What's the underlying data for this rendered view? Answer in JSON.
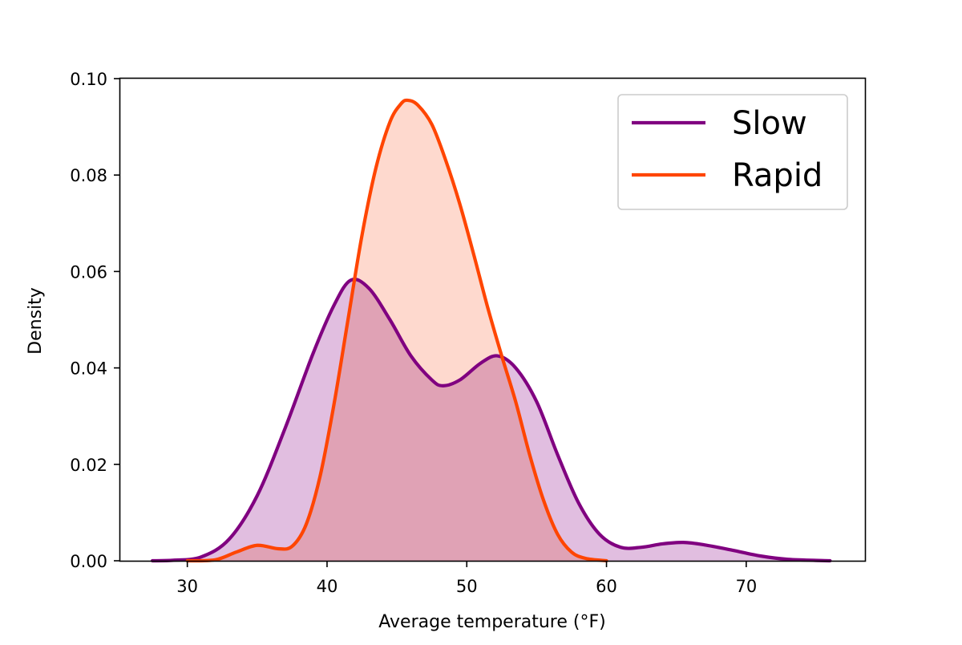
{
  "chart_data": {
    "type": "area",
    "title": "",
    "xlabel": "Average temperature (°F)",
    "ylabel": "Density",
    "xlim": [
      25.2,
      78.5
    ],
    "ylim": [
      0,
      0.1
    ],
    "xticks": [
      "30",
      "40",
      "50",
      "60",
      "70"
    ],
    "yticks": [
      "0.00",
      "0.02",
      "0.04",
      "0.06",
      "0.08",
      "0.10"
    ],
    "grid": false,
    "legend": {
      "placement": "top-right"
    },
    "series": [
      {
        "name": "Slow",
        "color": "#800080",
        "fill": "#e1bee0",
        "points": [
          [
            27.5,
            0.0
          ],
          [
            29.0,
            0.0001
          ],
          [
            31.0,
            0.0008
          ],
          [
            33.0,
            0.0045
          ],
          [
            35.0,
            0.0135
          ],
          [
            37.0,
            0.0275
          ],
          [
            39.0,
            0.043
          ],
          [
            40.5,
            0.053
          ],
          [
            41.7,
            0.0582
          ],
          [
            43.0,
            0.0565
          ],
          [
            44.5,
            0.05
          ],
          [
            46.0,
            0.0425
          ],
          [
            47.5,
            0.0375
          ],
          [
            48.3,
            0.0363
          ],
          [
            49.5,
            0.0375
          ],
          [
            51.0,
            0.041
          ],
          [
            52.2,
            0.0425
          ],
          [
            53.5,
            0.04
          ],
          [
            55.0,
            0.033
          ],
          [
            56.5,
            0.022
          ],
          [
            58.0,
            0.012
          ],
          [
            59.5,
            0.0055
          ],
          [
            61.0,
            0.0028
          ],
          [
            62.5,
            0.0028
          ],
          [
            64.0,
            0.0035
          ],
          [
            65.5,
            0.0038
          ],
          [
            67.0,
            0.0033
          ],
          [
            69.0,
            0.0022
          ],
          [
            71.0,
            0.001
          ],
          [
            73.0,
            0.0003
          ],
          [
            76.0,
            0.0
          ]
        ]
      },
      {
        "name": "Rapid",
        "color": "#ff4500",
        "fill": "#fdccbd",
        "points": [
          [
            30.0,
            0.0
          ],
          [
            32.0,
            0.0002
          ],
          [
            33.5,
            0.0018
          ],
          [
            35.0,
            0.0032
          ],
          [
            36.5,
            0.0025
          ],
          [
            37.5,
            0.003
          ],
          [
            38.5,
            0.0075
          ],
          [
            39.5,
            0.0175
          ],
          [
            40.5,
            0.0325
          ],
          [
            41.5,
            0.05
          ],
          [
            42.5,
            0.0675
          ],
          [
            43.5,
            0.0815
          ],
          [
            44.5,
            0.091
          ],
          [
            45.3,
            0.0948
          ],
          [
            45.8,
            0.0955
          ],
          [
            46.5,
            0.0945
          ],
          [
            47.5,
            0.0905
          ],
          [
            48.5,
            0.083
          ],
          [
            49.5,
            0.074
          ],
          [
            50.5,
            0.0635
          ],
          [
            51.5,
            0.0525
          ],
          [
            52.5,
            0.0425
          ],
          [
            53.5,
            0.033
          ],
          [
            54.5,
            0.022
          ],
          [
            55.5,
            0.0125
          ],
          [
            56.5,
            0.0055
          ],
          [
            57.5,
            0.0018
          ],
          [
            58.5,
            0.0005
          ],
          [
            60.0,
            0.0
          ]
        ]
      }
    ]
  }
}
